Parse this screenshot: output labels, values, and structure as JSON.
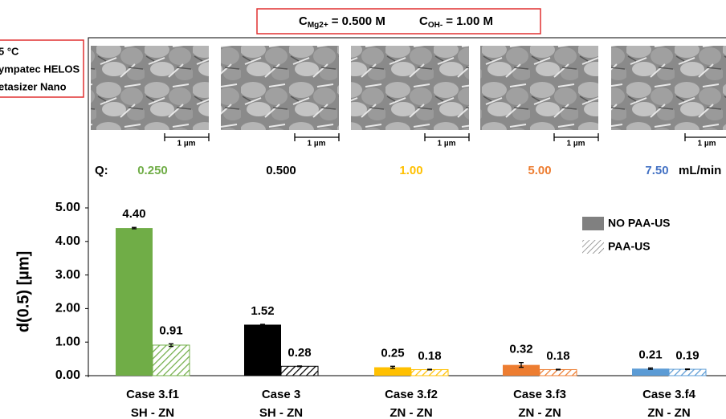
{
  "header": {
    "conditions": [
      {
        "symbol": "C",
        "sub": "Mg2+",
        "value": "= 0.500 M"
      },
      {
        "symbol": "C",
        "sub": "OH-",
        "value": "= 1.00 M"
      }
    ],
    "notes": [
      "5 °C",
      "ympatec HELOS",
      "etasizer Nano"
    ]
  },
  "images": [
    {
      "scale": "1 µm"
    },
    {
      "scale": "1 µm"
    },
    {
      "scale": "1 µm"
    },
    {
      "scale": "1 µm"
    },
    {
      "scale": "1 µm"
    }
  ],
  "flow": {
    "label": "Q:",
    "rates": [
      {
        "text": "0.250",
        "color": "#70ad47"
      },
      {
        "text": "0.500",
        "color": "#000000"
      },
      {
        "text": "1.00",
        "color": "#ffc000"
      },
      {
        "text": "5.00",
        "color": "#ed7d31"
      },
      {
        "text": "7.50",
        "color": "#4472c4"
      }
    ],
    "unit": "mL/min"
  },
  "chart_data": {
    "type": "bar",
    "y_label": "d(0.5) [µm]",
    "categories": [
      "Case 3.f1",
      "Case 3",
      "Case 3.f2",
      "Case 3.f3",
      "Case 3.f4"
    ],
    "category_sublabels": [
      "SH  -  ZN",
      "SH  -  ZN",
      "ZN  -  ZN",
      "ZN  -  ZN",
      "ZN  -  ZN"
    ],
    "bar_colors": [
      "#70ad47",
      "#000000",
      "#ffc000",
      "#ed7d31",
      "#5b9bd5"
    ],
    "series": [
      {
        "name": "NO PAA-US",
        "color": "#808080",
        "fill": "solid",
        "values": [
          4.4,
          1.52,
          0.25,
          0.32,
          0.21
        ],
        "value_labels": [
          "4.40",
          "1.52",
          "0.25",
          "0.32",
          "0.21"
        ],
        "errors": [
          0.02,
          0.01,
          0.03,
          0.07,
          0.02
        ]
      },
      {
        "name": "PAA-US",
        "color": "#808080",
        "fill": "hatch",
        "values": [
          0.91,
          0.28,
          0.18,
          0.18,
          0.19
        ],
        "value_labels": [
          "0.91",
          "0.28",
          "0.18",
          "0.18",
          "0.19"
        ],
        "errors": [
          0.04,
          0.01,
          0.01,
          0.01,
          0.01
        ]
      }
    ],
    "ylim": [
      0,
      5
    ],
    "yticks": [
      {
        "value": 0,
        "label": "0.00"
      },
      {
        "value": 1,
        "label": "1.00"
      },
      {
        "value": 2,
        "label": "2.00"
      },
      {
        "value": 3,
        "label": "3.00"
      },
      {
        "value": 4,
        "label": "4.00"
      },
      {
        "value": 5,
        "label": "5.00"
      }
    ],
    "legend": "upper-right",
    "grid": false
  }
}
